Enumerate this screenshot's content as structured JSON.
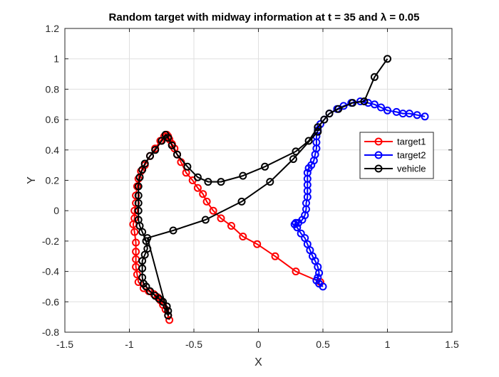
{
  "chart_data": {
    "type": "line",
    "title": "Random target with midway information at t = 35 and λ = 0.05",
    "xlabel": "X",
    "ylabel": "Y",
    "xlim": [
      -1.5,
      1.5
    ],
    "ylim": [
      -0.8,
      1.2
    ],
    "xticks": [
      -1.5,
      -1,
      -0.5,
      0,
      0.5,
      1,
      1.5
    ],
    "yticks": [
      -0.8,
      -0.6,
      -0.4,
      -0.2,
      0,
      0.2,
      0.4,
      0.6,
      0.8,
      1,
      1.2
    ],
    "xtick_labels": [
      "-1.5",
      "-1",
      "-0.5",
      "0",
      "0.5",
      "1",
      "1.5"
    ],
    "ytick_labels": [
      "-0.8",
      "-0.6",
      "-0.4",
      "-0.2",
      "0",
      "0.2",
      "0.4",
      "0.6",
      "0.8",
      "1",
      "1.2"
    ],
    "grid": true,
    "legend_position": "right",
    "series": [
      {
        "name": "target1",
        "color": "#ff0000",
        "marker": "circle",
        "points": [
          [
            0.48,
            -0.47
          ],
          [
            0.29,
            -0.4
          ],
          [
            0.13,
            -0.3
          ],
          [
            -0.01,
            -0.22
          ],
          [
            -0.12,
            -0.17
          ],
          [
            -0.21,
            -0.1
          ],
          [
            -0.29,
            -0.05
          ],
          [
            -0.35,
            0.0
          ],
          [
            -0.4,
            0.06
          ],
          [
            -0.43,
            0.11
          ],
          [
            -0.47,
            0.15
          ],
          [
            -0.51,
            0.2
          ],
          [
            -0.56,
            0.25
          ],
          [
            -0.6,
            0.32
          ],
          [
            -0.63,
            0.37
          ],
          [
            -0.65,
            0.41
          ],
          [
            -0.67,
            0.44
          ],
          [
            -0.69,
            0.47
          ],
          [
            -0.7,
            0.49
          ],
          [
            -0.71,
            0.5
          ],
          [
            -0.73,
            0.49
          ],
          [
            -0.76,
            0.46
          ],
          [
            -0.8,
            0.41
          ],
          [
            -0.84,
            0.36
          ],
          [
            -0.88,
            0.3
          ],
          [
            -0.91,
            0.26
          ],
          [
            -0.93,
            0.21
          ],
          [
            -0.94,
            0.16
          ],
          [
            -0.95,
            0.1
          ],
          [
            -0.95,
            0.05
          ],
          [
            -0.96,
            0.0
          ],
          [
            -0.96,
            -0.05
          ],
          [
            -0.97,
            -0.09
          ],
          [
            -0.96,
            -0.14
          ],
          [
            -0.95,
            -0.21
          ],
          [
            -0.95,
            -0.27
          ],
          [
            -0.95,
            -0.32
          ],
          [
            -0.95,
            -0.37
          ],
          [
            -0.94,
            -0.42
          ],
          [
            -0.93,
            -0.47
          ],
          [
            -0.89,
            -0.51
          ],
          [
            -0.85,
            -0.53
          ],
          [
            -0.81,
            -0.55
          ],
          [
            -0.78,
            -0.57
          ],
          [
            -0.76,
            -0.59
          ],
          [
            -0.74,
            -0.62
          ],
          [
            -0.72,
            -0.65
          ],
          [
            -0.7,
            -0.69
          ],
          [
            -0.69,
            -0.72
          ]
        ]
      },
      {
        "name": "target2",
        "color": "#0000ff",
        "marker": "circle",
        "points": [
          [
            1.29,
            0.62
          ],
          [
            1.23,
            0.63
          ],
          [
            1.17,
            0.64
          ],
          [
            1.12,
            0.64
          ],
          [
            1.07,
            0.65
          ],
          [
            1.0,
            0.66
          ],
          [
            0.95,
            0.68
          ],
          [
            0.9,
            0.7
          ],
          [
            0.85,
            0.71
          ],
          [
            0.79,
            0.72
          ],
          [
            0.72,
            0.71
          ],
          [
            0.66,
            0.69
          ],
          [
            0.61,
            0.67
          ],
          [
            0.55,
            0.64
          ],
          [
            0.51,
            0.6
          ],
          [
            0.48,
            0.57
          ],
          [
            0.46,
            0.53
          ],
          [
            0.45,
            0.49
          ],
          [
            0.45,
            0.45
          ],
          [
            0.45,
            0.41
          ],
          [
            0.44,
            0.37
          ],
          [
            0.43,
            0.33
          ],
          [
            0.41,
            0.3
          ],
          [
            0.39,
            0.28
          ],
          [
            0.38,
            0.25
          ],
          [
            0.38,
            0.21
          ],
          [
            0.38,
            0.17
          ],
          [
            0.38,
            0.13
          ],
          [
            0.38,
            0.09
          ],
          [
            0.37,
            0.05
          ],
          [
            0.37,
            0.01
          ],
          [
            0.36,
            -0.03
          ],
          [
            0.34,
            -0.06
          ],
          [
            0.31,
            -0.08
          ],
          [
            0.29,
            -0.08
          ],
          [
            0.28,
            -0.09
          ],
          [
            0.3,
            -0.11
          ],
          [
            0.33,
            -0.15
          ],
          [
            0.36,
            -0.18
          ],
          [
            0.38,
            -0.22
          ],
          [
            0.4,
            -0.26
          ],
          [
            0.42,
            -0.3
          ],
          [
            0.44,
            -0.33
          ],
          [
            0.46,
            -0.37
          ],
          [
            0.47,
            -0.41
          ],
          [
            0.46,
            -0.44
          ],
          [
            0.45,
            -0.46
          ],
          [
            0.47,
            -0.48
          ],
          [
            0.5,
            -0.5
          ]
        ]
      },
      {
        "name": "vehicle",
        "color": "#000000",
        "marker": "circle",
        "points": [
          [
            1.0,
            1.0
          ],
          [
            0.9,
            0.88
          ],
          [
            0.82,
            0.72
          ],
          [
            0.73,
            0.71
          ],
          [
            0.62,
            0.67
          ],
          [
            0.55,
            0.64
          ],
          [
            0.51,
            0.6
          ],
          [
            0.46,
            0.55
          ],
          [
            0.39,
            0.46
          ],
          [
            0.29,
            0.39
          ],
          [
            0.05,
            0.29
          ],
          [
            -0.12,
            0.23
          ],
          [
            -0.29,
            0.19
          ],
          [
            -0.39,
            0.19
          ],
          [
            -0.47,
            0.22
          ],
          [
            -0.55,
            0.29
          ],
          [
            -0.63,
            0.37
          ],
          [
            -0.67,
            0.43
          ],
          [
            -0.7,
            0.48
          ],
          [
            -0.72,
            0.5
          ],
          [
            -0.75,
            0.46
          ],
          [
            -0.8,
            0.4
          ],
          [
            -0.84,
            0.36
          ],
          [
            -0.88,
            0.31
          ],
          [
            -0.9,
            0.27
          ],
          [
            -0.92,
            0.22
          ],
          [
            -0.93,
            0.16
          ],
          [
            -0.93,
            0.1
          ],
          [
            -0.93,
            0.05
          ],
          [
            -0.93,
            0.0
          ],
          [
            -0.93,
            -0.06
          ],
          [
            -0.92,
            -0.1
          ],
          [
            -0.9,
            -0.14
          ],
          [
            -0.87,
            -0.2
          ],
          [
            -0.86,
            -0.25
          ],
          [
            -0.88,
            -0.29
          ],
          [
            -0.9,
            -0.33
          ],
          [
            -0.9,
            -0.38
          ],
          [
            -0.9,
            -0.44
          ],
          [
            -0.89,
            -0.48
          ],
          [
            -0.87,
            -0.5
          ],
          [
            -0.84,
            -0.53
          ],
          [
            -0.8,
            -0.56
          ],
          [
            -0.77,
            -0.58
          ],
          [
            -0.74,
            -0.6
          ],
          [
            -0.71,
            -0.63
          ],
          [
            -0.7,
            -0.66
          ],
          [
            -0.7,
            -0.69
          ],
          [
            -0.86,
            -0.18
          ],
          [
            -0.66,
            -0.13
          ],
          [
            -0.41,
            -0.06
          ],
          [
            -0.13,
            0.06
          ],
          [
            0.09,
            0.19
          ],
          [
            0.27,
            0.34
          ],
          [
            0.46,
            0.52
          ]
        ]
      }
    ]
  }
}
